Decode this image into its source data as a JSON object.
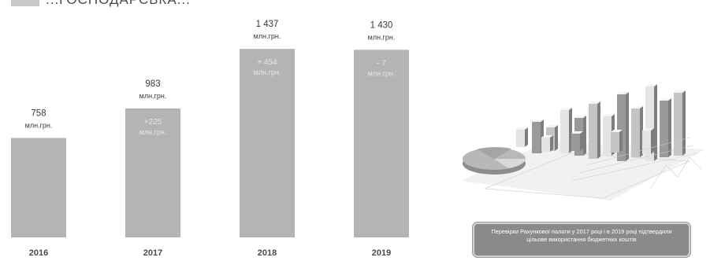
{
  "header": {
    "title": "...ГОСПОДАРСЬКА...",
    "square_color": "#c8c8c8"
  },
  "chart_data": {
    "type": "bar",
    "categories": [
      "2016",
      "2017",
      "2018",
      "2019"
    ],
    "values": [
      758,
      983,
      1437,
      1430
    ],
    "value_labels": [
      "758",
      "983",
      "1 437",
      "1 430"
    ],
    "unit": "млн.грн.",
    "deltas": [
      null,
      "+225",
      "+ 454",
      "- 7"
    ],
    "title": "",
    "xlabel": "",
    "ylabel": "",
    "ylim": [
      0,
      1450
    ],
    "grid": false,
    "legend": "none",
    "bar_color": "#b4b4b4"
  },
  "illustration": {
    "icon": "3d-business-charts-illustration"
  },
  "audit_note": {
    "text": "Перевірки Рахункової палати у 2017 році і в 2019 році підтвердили цільове використання бюджетних коштів"
  }
}
